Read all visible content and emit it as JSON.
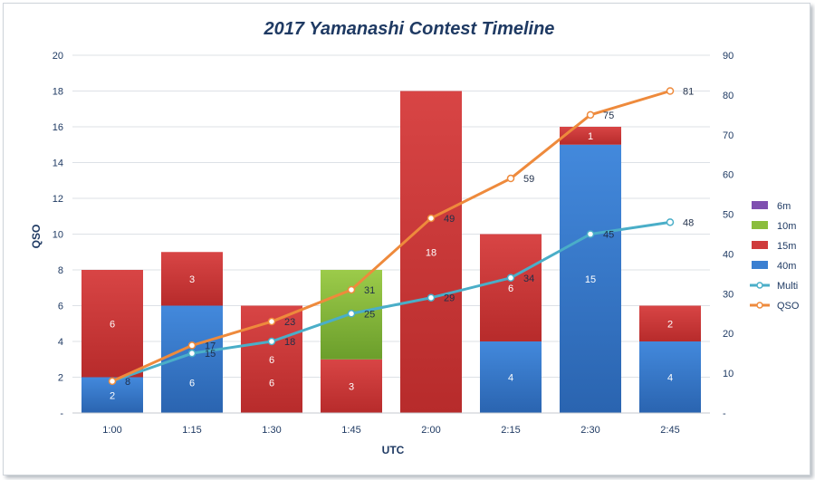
{
  "chart_data": {
    "type": "bar",
    "title": "2017 Yamanashi Contest Timeline",
    "xlabel": "UTC",
    "ylabel": "QSO",
    "categories": [
      "1:00",
      "1:15",
      "1:30",
      "1:45",
      "2:00",
      "2:15",
      "2:30",
      "2:45"
    ],
    "ylim": [
      0,
      20
    ],
    "y2lim": [
      0,
      90
    ],
    "y_ticks": [
      "-",
      "2",
      "4",
      "6",
      "8",
      "10",
      "12",
      "14",
      "16",
      "18",
      "20"
    ],
    "y2_ticks": [
      "-",
      "10",
      "20",
      "30",
      "40",
      "50",
      "60",
      "70",
      "80",
      "90"
    ],
    "stacked": true,
    "grid": true,
    "legend_position": "right",
    "series": [
      {
        "name": "6m",
        "kind": "bar",
        "color": "#7f4fb0",
        "values": [
          0,
          0,
          0,
          0,
          0,
          0,
          0,
          0
        ],
        "labels": [
          "",
          "",
          "",
          "",
          "",
          "",
          "",
          ""
        ]
      },
      {
        "name": "10m",
        "kind": "bar",
        "color": "#8bbd3c",
        "values": [
          0,
          0,
          0,
          5,
          0,
          0,
          0,
          0
        ],
        "labels": [
          "",
          "",
          "",
          "",
          "",
          "",
          "",
          ""
        ]
      },
      {
        "name": "15m",
        "kind": "bar",
        "color": "#cf3b3b",
        "values": [
          6,
          3,
          6,
          3,
          18,
          6,
          1,
          2
        ],
        "labels": [
          "6",
          "3",
          "6",
          "3",
          "18",
          "6",
          "1",
          "2"
        ]
      },
      {
        "name": "40m",
        "kind": "bar",
        "color": "#3a7fd1",
        "values": [
          2,
          6,
          0,
          0,
          0,
          4,
          15,
          4
        ],
        "labels": [
          "2",
          "",
          "",
          "",
          "",
          "4",
          "15",
          "4"
        ]
      },
      {
        "name": "Multi",
        "kind": "line",
        "axis": "right",
        "color": "#4aaec8",
        "values": [
          8,
          15,
          18,
          25,
          29,
          34,
          45,
          48
        ],
        "labels": [
          "8",
          "15",
          "18",
          "25",
          "29",
          "34",
          "45",
          "48"
        ]
      },
      {
        "name": "QSO",
        "kind": "line",
        "axis": "right",
        "color": "#ee8a3c",
        "values": [
          8,
          17,
          23,
          31,
          49,
          59,
          75,
          81
        ],
        "labels": [
          "",
          "17",
          "23",
          "31",
          "49",
          "59",
          "75",
          "81"
        ]
      }
    ],
    "extra_labels": [
      {
        "category": "1:15",
        "text": "6"
      },
      {
        "category": "1:30",
        "text": "6"
      }
    ]
  }
}
